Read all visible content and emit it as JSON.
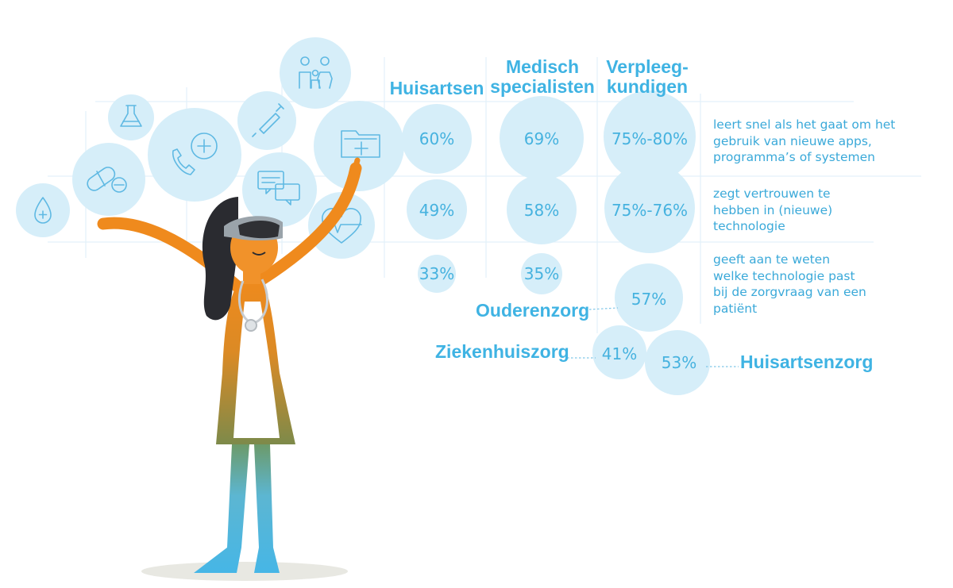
{
  "chart_data": {
    "type": "table",
    "columns": [
      "Huisartsen",
      "Medisch specialisten",
      "Verpleeg-kundigen"
    ],
    "rows": [
      {
        "label": "leert snel als het gaat om het gebruik van nieuwe apps, programma’s of systemen",
        "label_lines": [
          "leert snel als het gaat om het",
          "gebruik van nieuwe apps,",
          "programma’s of systemen"
        ],
        "values": [
          "60%",
          "69%",
          "75%-80%"
        ],
        "numeric": [
          60,
          69,
          [
            75,
            80
          ]
        ]
      },
      {
        "label": "zegt vertrouwen te hebben in (nieuwe) technologie",
        "label_lines": [
          "zegt vertrouwen te",
          "hebben in (nieuwe)",
          "technologie"
        ],
        "values": [
          "49%",
          "58%",
          "75%-76%"
        ],
        "numeric": [
          49,
          58,
          [
            75,
            76
          ]
        ]
      },
      {
        "label": "geeft aan te weten welke technologie past bij de zorgvraag van een patiënt",
        "label_lines": [
          "geeft aan te weten",
          "welke technologie past",
          "bij de zorgvraag van een",
          "patiënt"
        ],
        "values": [
          "33%",
          "35%"
        ],
        "numeric": [
          33,
          35
        ],
        "nurse_breakdown": [
          {
            "label": "Ouderenzorg",
            "value": "57%",
            "numeric": 57
          },
          {
            "label": "Ziekenhuiszorg",
            "value": "41%",
            "numeric": 41
          },
          {
            "label": "Huisartsenzorg",
            "value": "53%",
            "numeric": 53
          }
        ]
      }
    ]
  },
  "header": {
    "col1": [
      "Huisartsen"
    ],
    "col2": [
      "Medisch",
      "specialisten"
    ],
    "col3": [
      "Verpleeg-",
      "kundigen"
    ]
  },
  "colors": {
    "text": "#3fb3e3",
    "bubble": "#d6eef9",
    "orange": "#ef8a1d",
    "skin": "#f1922a",
    "hair": "#2a2b30",
    "green": "#7d8a4a",
    "leg": "#5cb6d2"
  },
  "icons": [
    "drop-plus-icon",
    "pills-icon",
    "flask-icon",
    "phone-plus-icon",
    "syringe-icon",
    "chat-icon",
    "family-icon",
    "medical-folder-icon",
    "heart-pulse-icon"
  ]
}
